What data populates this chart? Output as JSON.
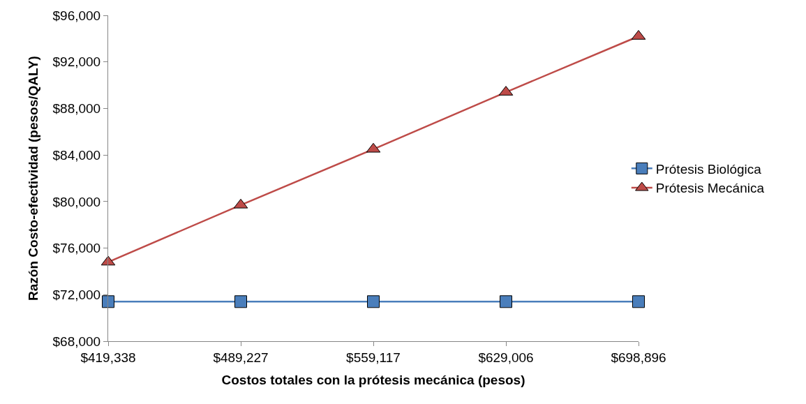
{
  "chart_data": {
    "type": "line",
    "xlabel": "Costos totales con la prótesis mecánica (pesos)",
    "ylabel": "Razón Costo-efectividad (pesos/QALY)",
    "categories": [
      "$419,338",
      "$489,227",
      "$559,117",
      "$629,006",
      "$698,896"
    ],
    "series": [
      {
        "name": "Prótesis Biológica",
        "color": "#4a7ebb",
        "marker": "square",
        "values": [
          71400,
          71400,
          71400,
          71400,
          71400
        ]
      },
      {
        "name": "Prótesis Mecánica",
        "color": "#be4b48",
        "marker": "triangle",
        "values": [
          74800,
          79700,
          84500,
          89400,
          94200
        ]
      }
    ],
    "ylim": [
      68000,
      96000
    ],
    "yticks": [
      {
        "value": 68000,
        "label": "$68,000"
      },
      {
        "value": 72000,
        "label": "$72,000"
      },
      {
        "value": 76000,
        "label": "$76,000"
      },
      {
        "value": 80000,
        "label": "$80,000"
      },
      {
        "value": 84000,
        "label": "$84,000"
      },
      {
        "value": 88000,
        "label": "$88,000"
      },
      {
        "value": 92000,
        "label": "$92,000"
      },
      {
        "value": 96000,
        "label": "$96,000"
      }
    ],
    "legend": "right",
    "line_style": "solid"
  }
}
